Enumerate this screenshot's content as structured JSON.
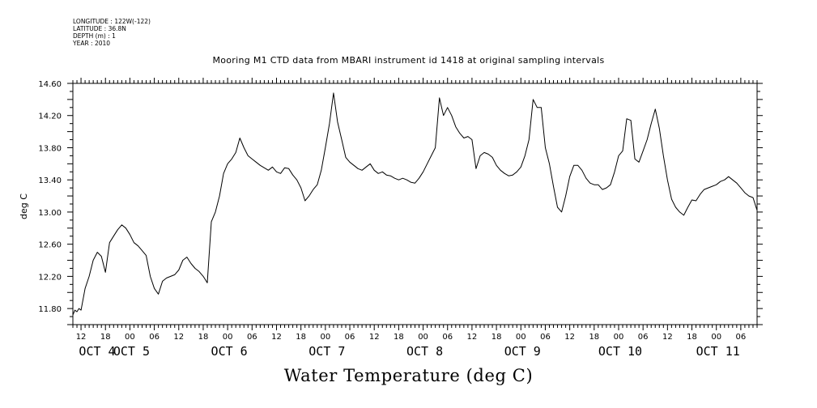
{
  "metadata": [
    "LONGITUDE : 122W(-122)",
    "LATITUDE : 36.8N",
    "DEPTH (m) : 1",
    "YEAR : 2010"
  ],
  "chart_data": {
    "type": "line",
    "title": "Mooring M1 CTD data from MBARI instrument id 1418 at original sampling intervals",
    "xlabel": "Water Temperature (deg C)",
    "ylabel": "deg C",
    "ylim": [
      11.6,
      14.6
    ],
    "yticks": [
      "14.60",
      "14.20",
      "13.80",
      "13.40",
      "13.00",
      "12.60",
      "12.20",
      "11.80"
    ],
    "x_start_day": "OCT 4",
    "x_start_hour": 10,
    "x_end_day": "OCT 11",
    "x_end_hour": 10,
    "hour_labels": [
      {
        "day": 4,
        "hour": 12,
        "label": "12"
      },
      {
        "day": 4,
        "hour": 18,
        "label": "18"
      },
      {
        "day": 5,
        "hour": 0,
        "label": "00"
      },
      {
        "day": 5,
        "hour": 6,
        "label": "06"
      },
      {
        "day": 5,
        "hour": 12,
        "label": "12"
      },
      {
        "day": 5,
        "hour": 18,
        "label": "18"
      },
      {
        "day": 6,
        "hour": 0,
        "label": "00"
      },
      {
        "day": 6,
        "hour": 6,
        "label": "06"
      },
      {
        "day": 6,
        "hour": 12,
        "label": "12"
      },
      {
        "day": 6,
        "hour": 18,
        "label": "18"
      },
      {
        "day": 7,
        "hour": 0,
        "label": "00"
      },
      {
        "day": 7,
        "hour": 6,
        "label": "06"
      },
      {
        "day": 7,
        "hour": 12,
        "label": "12"
      },
      {
        "day": 7,
        "hour": 18,
        "label": "18"
      },
      {
        "day": 8,
        "hour": 0,
        "label": "00"
      },
      {
        "day": 8,
        "hour": 6,
        "label": "06"
      },
      {
        "day": 8,
        "hour": 12,
        "label": "12"
      },
      {
        "day": 8,
        "hour": 18,
        "label": "18"
      },
      {
        "day": 9,
        "hour": 0,
        "label": "00"
      },
      {
        "day": 9,
        "hour": 6,
        "label": "06"
      },
      {
        "day": 9,
        "hour": 12,
        "label": "12"
      },
      {
        "day": 9,
        "hour": 18,
        "label": "18"
      },
      {
        "day": 10,
        "hour": 0,
        "label": "00"
      },
      {
        "day": 10,
        "hour": 6,
        "label": "06"
      },
      {
        "day": 10,
        "hour": 12,
        "label": "12"
      },
      {
        "day": 10,
        "hour": 18,
        "label": "18"
      },
      {
        "day": 11,
        "hour": 0,
        "label": "00"
      },
      {
        "day": 11,
        "hour": 6,
        "label": "06"
      }
    ],
    "day_labels": [
      {
        "day": 4,
        "label": "OCT  4"
      },
      {
        "day": 5,
        "label": "OCT  5"
      },
      {
        "day": 6,
        "label": "OCT  6"
      },
      {
        "day": 7,
        "label": "OCT  7"
      },
      {
        "day": 8,
        "label": "OCT  8"
      },
      {
        "day": 9,
        "label": "OCT  9"
      },
      {
        "day": 10,
        "label": "OCT 10"
      },
      {
        "day": 11,
        "label": "OCT 11"
      }
    ],
    "series": [
      {
        "name": "",
        "hours_since_oct4_10h": [
          0,
          0.5,
          1,
          1.5,
          2,
          3,
          4,
          5,
          6,
          7,
          8,
          9,
          10,
          11,
          12,
          13,
          14,
          15,
          16,
          17,
          18,
          19,
          20,
          21,
          22,
          23,
          24,
          25,
          26,
          27,
          28,
          29,
          30,
          31,
          32,
          33,
          34,
          35,
          36,
          37,
          38,
          39,
          40,
          41,
          42,
          43,
          44,
          45,
          46,
          47,
          48,
          49,
          50,
          51,
          52,
          53,
          54,
          55,
          56,
          57,
          58,
          59,
          60,
          61,
          62,
          63,
          64,
          65,
          66,
          67,
          68,
          69,
          70,
          71,
          72,
          73,
          74,
          75,
          76,
          77,
          78,
          79,
          80,
          81,
          82,
          83,
          84,
          85,
          86,
          87,
          88,
          89,
          90,
          91,
          92,
          93,
          94,
          95,
          96,
          97,
          98,
          99,
          100,
          101,
          102,
          103,
          104,
          105,
          106,
          107,
          108,
          109,
          110,
          111,
          112,
          113,
          114,
          115,
          116,
          117,
          118,
          119,
          120,
          121,
          122,
          123,
          124,
          125,
          126,
          127,
          128,
          129,
          130,
          131,
          132,
          133,
          134,
          135,
          136,
          137,
          138,
          139,
          140,
          141,
          142,
          143,
          144,
          145,
          146,
          147,
          148,
          149,
          150,
          151,
          152,
          153,
          154,
          155,
          156,
          157,
          158,
          159,
          160,
          161,
          162,
          163,
          164,
          165,
          166,
          167,
          168
        ],
        "values": [
          11.72,
          11.78,
          11.76,
          11.8,
          11.78,
          12.05,
          12.2,
          12.4,
          12.5,
          12.45,
          12.25,
          12.62,
          12.7,
          12.78,
          12.84,
          12.8,
          12.72,
          12.62,
          12.58,
          12.52,
          12.46,
          12.2,
          12.05,
          11.98,
          12.14,
          12.18,
          12.2,
          12.22,
          12.28,
          12.4,
          12.44,
          12.36,
          12.3,
          12.26,
          12.2,
          12.12,
          12.88,
          13.0,
          13.2,
          13.48,
          13.6,
          13.66,
          13.74,
          13.92,
          13.8,
          13.7,
          13.66,
          13.62,
          13.58,
          13.55,
          13.52,
          13.56,
          13.5,
          13.48,
          13.55,
          13.54,
          13.46,
          13.4,
          13.3,
          13.14,
          13.2,
          13.28,
          13.34,
          13.52,
          13.8,
          14.1,
          14.48,
          14.12,
          13.9,
          13.68,
          13.62,
          13.58,
          13.54,
          13.52,
          13.56,
          13.6,
          13.52,
          13.48,
          13.5,
          13.46,
          13.45,
          13.42,
          13.4,
          13.42,
          13.4,
          13.37,
          13.36,
          13.42,
          13.5,
          13.6,
          13.7,
          13.8,
          14.42,
          14.2,
          14.3,
          14.2,
          14.06,
          13.98,
          13.92,
          13.94,
          13.9,
          13.54,
          13.7,
          13.74,
          13.72,
          13.68,
          13.58,
          13.52,
          13.48,
          13.45,
          13.46,
          13.5,
          13.56,
          13.7,
          13.9,
          14.4,
          14.3,
          14.3,
          13.8,
          13.6,
          13.32,
          13.06,
          13.0,
          13.2,
          13.44,
          13.58,
          13.58,
          13.52,
          13.42,
          13.36,
          13.34,
          13.34,
          13.28,
          13.3,
          13.34,
          13.5,
          13.7,
          13.76,
          14.16,
          14.14,
          13.66,
          13.62,
          13.76,
          13.9,
          14.1,
          14.28,
          14.04,
          13.7,
          13.4,
          13.16,
          13.06,
          13.0,
          12.96,
          13.06,
          13.15,
          13.14,
          13.22,
          13.28,
          13.3,
          13.32,
          13.34,
          13.38,
          13.4,
          13.44,
          13.4,
          13.36,
          13.3,
          13.24,
          13.2,
          13.18,
          13.02,
          13.16,
          13.2,
          13.14,
          13.08,
          13.18,
          12.96
        ]
      }
    ],
    "grid": false
  }
}
